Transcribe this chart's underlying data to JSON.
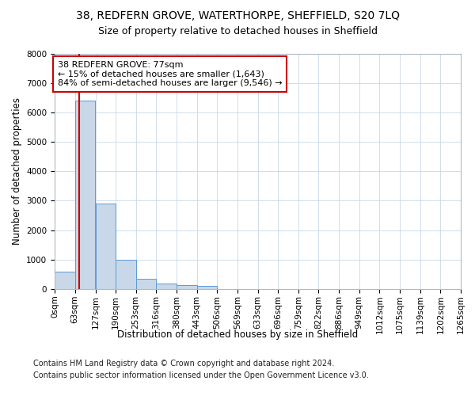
{
  "title1": "38, REDFERN GROVE, WATERTHORPE, SHEFFIELD, S20 7LQ",
  "title2": "Size of property relative to detached houses in Sheffield",
  "xlabel": "Distribution of detached houses by size in Sheffield",
  "ylabel": "Number of detached properties",
  "bin_edges": [
    0,
    63,
    127,
    190,
    253,
    316,
    380,
    443,
    506,
    569,
    633,
    696,
    759,
    822,
    886,
    949,
    1012,
    1075,
    1139,
    1202,
    1265
  ],
  "bar_heights": [
    600,
    6400,
    2900,
    1000,
    350,
    175,
    125,
    100,
    0,
    0,
    0,
    0,
    0,
    0,
    0,
    0,
    0,
    0,
    0,
    0
  ],
  "bar_color": "#c8d8e8",
  "bar_edge_color": "#5b9bd5",
  "property_size": 77,
  "red_line_color": "#cc0000",
  "annotation_box_color": "#cc0000",
  "annotation_text": "38 REDFERN GROVE: 77sqm\n← 15% of detached houses are smaller (1,643)\n84% of semi-detached houses are larger (9,546) →",
  "ylim": [
    0,
    8000
  ],
  "yticks": [
    0,
    1000,
    2000,
    3000,
    4000,
    5000,
    6000,
    7000,
    8000
  ],
  "footer1": "Contains HM Land Registry data © Crown copyright and database right 2024.",
  "footer2": "Contains public sector information licensed under the Open Government Licence v3.0.",
  "bg_color": "#ffffff",
  "grid_color": "#c8d8e8",
  "title1_fontsize": 10,
  "title2_fontsize": 9,
  "axis_fontsize": 8.5,
  "tick_fontsize": 7.5,
  "footer_fontsize": 7
}
